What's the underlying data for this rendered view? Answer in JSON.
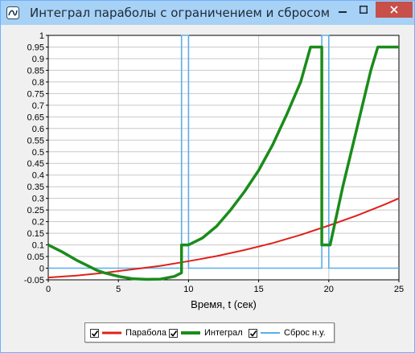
{
  "window": {
    "title": "Интеграл параболы с ограничением и сбросом",
    "icon": "app-logo-icon",
    "controls": [
      "minimize-icon",
      "maximize-icon",
      "close-icon"
    ]
  },
  "chart_data": {
    "type": "line",
    "xlabel": "Время, t (сек)",
    "xlim": [
      0,
      25
    ],
    "ylim": [
      -0.05,
      1
    ],
    "xticks": [
      0,
      5,
      10,
      15,
      20,
      25
    ],
    "yticks": [
      -0.05,
      0,
      0.05,
      0.1,
      0.15,
      0.2,
      0.25,
      0.3,
      0.35,
      0.4,
      0.45,
      0.5,
      0.55,
      0.6,
      0.65,
      0.7,
      0.75,
      0.8,
      0.85,
      0.9,
      0.95,
      1
    ],
    "grid": true,
    "legend_position": "bottom",
    "series": [
      {
        "name": "Парабола",
        "color": "#e0201a",
        "x": [
          0,
          2,
          4,
          6,
          8,
          10,
          12,
          14,
          16,
          18,
          20,
          22,
          24,
          25
        ],
        "y": [
          -0.04,
          -0.032,
          -0.02,
          -0.005,
          0.01,
          0.03,
          0.052,
          0.078,
          0.108,
          0.143,
          0.183,
          0.226,
          0.274,
          0.3
        ]
      },
      {
        "name": "Интеграл",
        "color": "#1a8c1a",
        "x": [
          0,
          1,
          2,
          3,
          3.5,
          4,
          5,
          6,
          7,
          8,
          9,
          9.5,
          9.5,
          10,
          11,
          12,
          13,
          14,
          15,
          16,
          17,
          18,
          18.7,
          19.5,
          19.5,
          20.1,
          21,
          22,
          23,
          23.5,
          25
        ],
        "y": [
          0.1,
          0.07,
          0.035,
          0.005,
          -0.01,
          -0.02,
          -0.035,
          -0.045,
          -0.048,
          -0.047,
          -0.035,
          -0.02,
          0.1,
          0.1,
          0.13,
          0.18,
          0.25,
          0.33,
          0.42,
          0.53,
          0.66,
          0.8,
          0.95,
          0.95,
          0.1,
          0.1,
          0.35,
          0.6,
          0.85,
          0.95,
          0.95
        ]
      },
      {
        "name": "Сброс н.у.",
        "color": "#5aaeea",
        "x": [
          0,
          9.5,
          9.5,
          10,
          10,
          19.5,
          19.5,
          20,
          20,
          25
        ],
        "y": [
          0,
          0,
          1,
          1,
          0,
          0,
          1,
          1,
          0,
          0
        ]
      }
    ]
  }
}
